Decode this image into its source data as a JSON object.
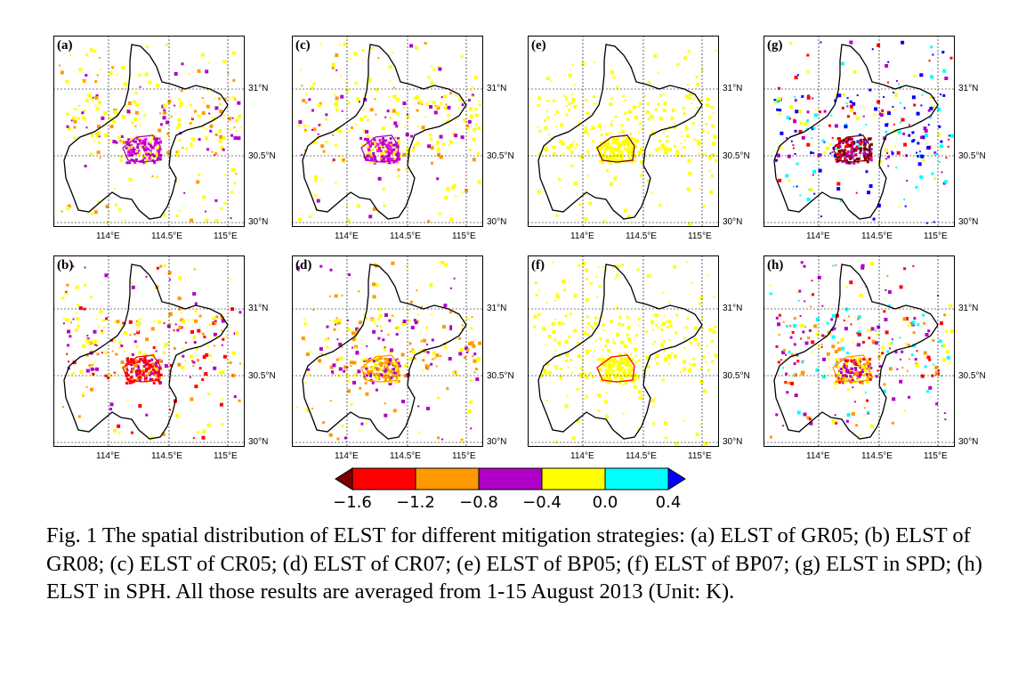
{
  "figure": {
    "panels": [
      {
        "label": "(a)",
        "lat_ticks": [
          "31°N",
          "30.5°N",
          "30°N"
        ],
        "lon_ticks": [
          "114°E",
          "114.5°E",
          "115°E"
        ]
      },
      {
        "label": "(c)",
        "lat_ticks": [
          "31°N",
          "30.5°N",
          "30°N"
        ],
        "lon_ticks": [
          "114°E",
          "114.5°E",
          "115°E"
        ]
      },
      {
        "label": "(e)",
        "lat_ticks": [
          "31°N",
          "30.5°N",
          "30°N"
        ],
        "lon_ticks": [
          "114°E",
          "114.5°E",
          "115°E"
        ]
      },
      {
        "label": "(g)",
        "lat_ticks": [
          "31°N",
          "30.5°N",
          "30°N"
        ],
        "lon_ticks": [
          "114°E",
          "114.5°E",
          "115°E"
        ]
      },
      {
        "label": "(b)",
        "lat_ticks": [
          "31°N",
          "30.5°N",
          "30°N"
        ],
        "lon_ticks": [
          "114°E",
          "114.5°E",
          "115°E"
        ]
      },
      {
        "label": "(d)",
        "lat_ticks": [
          "31°N",
          "30.5°N",
          "30°N"
        ],
        "lon_ticks": [
          "114°E",
          "114.5°E",
          "115°E"
        ]
      },
      {
        "label": "(f)",
        "lat_ticks": [
          "31°N",
          "30.5°N",
          "30°N"
        ],
        "lon_ticks": [
          "114°E",
          "114.5°E",
          "115°E"
        ]
      },
      {
        "label": "(h)",
        "lat_ticks": [
          "31°N",
          "30.5°N",
          "30°N"
        ],
        "lon_ticks": [
          "114°E",
          "114.5°E",
          "115°E"
        ]
      }
    ],
    "colorbar": {
      "ticks": [
        "−1.6",
        "−1.2",
        "−0.8",
        "−0.4",
        "0.0",
        "0.4"
      ],
      "colors": [
        "#7a0000",
        "#ff0000",
        "#ff9900",
        "#b000c8",
        "#ffff00",
        "#00ffff",
        "#0000ff"
      ]
    }
  },
  "caption": "Fig. 1 The spatial distribution of ELST for different mitigation strategies: (a) ELST of GR05; (b) ELST of GR08; (c) ELST of CR05; (d) ELST of CR07; (e) ELST of BP05; (f) ELST of BP07; (g) ELST in SPD; (h) ELST in SPH. All those results are averaged from 1-15 August 2013 (Unit: K)."
}
